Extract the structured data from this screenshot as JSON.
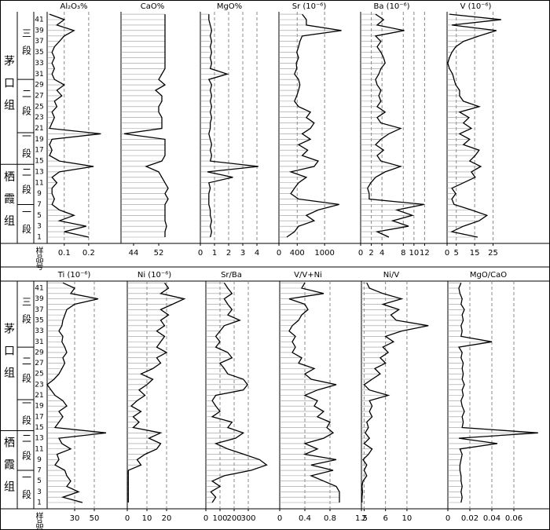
{
  "strata": [
    {
      "formation": "茅口组",
      "members": [
        "三段",
        "二段",
        "一段"
      ]
    },
    {
      "formation": "栖霞组",
      "members": [
        "二段",
        "一段"
      ]
    }
  ],
  "chart_data": [
    {
      "type": "line",
      "title": "Al₂O₃%",
      "y_label": "样品号",
      "categories": [
        1,
        null,
        3,
        null,
        5,
        null,
        7,
        null,
        9,
        null,
        11,
        null,
        13,
        null,
        15,
        null,
        17,
        null,
        19,
        null,
        21,
        null,
        23,
        null,
        25,
        null,
        27,
        null,
        29,
        null,
        31,
        null,
        33,
        null,
        35,
        null,
        37,
        null,
        39,
        null,
        41,
        null
      ],
      "values": [
        0.2,
        0.1,
        0.19,
        0.08,
        0.14,
        0.08,
        0.05,
        0.06,
        0.05,
        0.05,
        0.07,
        0.05,
        0.08,
        0.22,
        0.08,
        0.04,
        0.05,
        0.04,
        0.05,
        0.25,
        0.04,
        0.05,
        0.06,
        0.05,
        0.07,
        0.06,
        0.09,
        0.07,
        0.1,
        0.06,
        0.05,
        0.06,
        0.05,
        0.06,
        0.05,
        0.06,
        0.08,
        0.1,
        0.14,
        0.07,
        0.1,
        0.04
      ],
      "xlim": [
        0.03,
        0.3
      ],
      "xticks": [
        0.1,
        0.2
      ],
      "grid": true,
      "color": "#000000"
    },
    {
      "type": "line",
      "title": "CaO%",
      "values": [
        54,
        54,
        54.5,
        54,
        54,
        54,
        54,
        55,
        54,
        55,
        54,
        53,
        52,
        48,
        53,
        54,
        54,
        54,
        54,
        41,
        53,
        53,
        53,
        52,
        52,
        53,
        53,
        51,
        54,
        52,
        53,
        54,
        54,
        54,
        54,
        54,
        54,
        54,
        54,
        54,
        54,
        54
      ],
      "xlim": [
        40,
        64
      ],
      "xticks": [
        44,
        52
      ],
      "grid": false,
      "color": "#000000"
    },
    {
      "type": "line",
      "title": "MgO%",
      "values": [
        0.7,
        0.8,
        0.7,
        0.8,
        0.7,
        0.7,
        0.6,
        0.6,
        0.6,
        0.7,
        0.6,
        2.3,
        0.5,
        4.1,
        0.7,
        0.8,
        0.7,
        0.8,
        0.7,
        0.6,
        0.7,
        0.7,
        0.8,
        0.7,
        0.8,
        0.7,
        0.8,
        0.7,
        0.8,
        0.6,
        1.9,
        0.7,
        0.8,
        0.7,
        0.8,
        0.7,
        0.8,
        0.7,
        0.8,
        0.7,
        0.6,
        0.6
      ],
      "xlim": [
        0,
        5
      ],
      "xticks": [
        0,
        1,
        2,
        3,
        4
      ],
      "grid": true,
      "color": "#000000"
    },
    {
      "type": "line",
      "title": "Sr (10⁻⁶)",
      "values": [
        170,
        340,
        430,
        770,
        600,
        860,
        1320,
        430,
        260,
        340,
        430,
        600,
        260,
        770,
        860,
        510,
        630,
        430,
        690,
        510,
        690,
        770,
        600,
        690,
        430,
        340,
        390,
        430,
        460,
        430,
        340,
        390,
        380,
        430,
        390,
        430,
        460,
        510,
        1370,
        600,
        600,
        510
      ],
      "xlim": [
        0,
        1600
      ],
      "xticks": [
        0,
        400,
        1000
      ],
      "grid": true,
      "color": "#000000"
    },
    {
      "type": "line",
      "title": "Ba (10⁻⁶)",
      "values": [
        5.3,
        3.1,
        9.0,
        6.0,
        9.7,
        6.8,
        11.9,
        1.6,
        1.6,
        1.3,
        1.9,
        2.8,
        4.6,
        7.5,
        3.8,
        3.1,
        4.3,
        2.8,
        3.8,
        5.3,
        7.5,
        3.8,
        3.1,
        4.6,
        3.1,
        3.8,
        3.4,
        3.8,
        3.1,
        2.8,
        3.4,
        3.8,
        4.6,
        4.3,
        3.8,
        3.1,
        3.8,
        2.8,
        8.2,
        3.1,
        4.3,
        2.8
      ],
      "xlim": [
        0,
        14
      ],
      "xticks": [
        0,
        2,
        4,
        8,
        10,
        12
      ],
      "grid": true,
      "color": "#000000"
    },
    {
      "type": "line",
      "title": "V (10⁻⁶)",
      "values": [
        16.6,
        2.6,
        8.9,
        17.4,
        21.7,
        13.2,
        3.8,
        2.6,
        4.7,
        2.6,
        8.9,
        15.3,
        13.2,
        18.3,
        12.3,
        15.3,
        17.4,
        8.9,
        12.3,
        6.8,
        13.2,
        8.9,
        11.9,
        6.8,
        17.4,
        8.9,
        6.8,
        6.8,
        4.7,
        3.8,
        3.0,
        1.3,
        0.4,
        1.3,
        2.6,
        4.7,
        8.9,
        17.4,
        26.8,
        2.6,
        29.4,
        1.3
      ],
      "xlim": [
        0,
        38
      ],
      "xticks": [
        0,
        5,
        15,
        25
      ],
      "grid": true,
      "color": "#000000"
    },
    {
      "type": "line",
      "title": "Ti (10⁻⁶)",
      "y_label": "样品号",
      "categories": [
        1,
        null,
        3,
        null,
        5,
        null,
        7,
        null,
        9,
        null,
        11,
        null,
        13,
        null,
        15,
        null,
        17,
        null,
        19,
        null,
        21,
        null,
        23,
        null,
        25,
        null,
        27,
        null,
        29,
        null,
        31,
        null,
        33,
        null,
        35,
        null,
        37,
        null,
        39,
        null,
        41,
        null
      ],
      "values": [
        38,
        18,
        34,
        22,
        26,
        22,
        20,
        10,
        14,
        12,
        26,
        17,
        14,
        62,
        10,
        14,
        18,
        14,
        22,
        18,
        10,
        6,
        2,
        9,
        14,
        17,
        20,
        18,
        22,
        20,
        17,
        18,
        14,
        17,
        18,
        20,
        22,
        30,
        54,
        26,
        30,
        18
      ],
      "xlim": [
        2,
        70
      ],
      "xticks": [
        30,
        50
      ],
      "grid": true,
      "color": "#000000"
    },
    {
      "type": "line",
      "title": "Ni (10⁻⁶)",
      "values": [
        0.5,
        0.5,
        0.5,
        0.5,
        0.5,
        0.5,
        0.5,
        7,
        5,
        9,
        15,
        17,
        11,
        17,
        3,
        6,
        3,
        7,
        2,
        5,
        9,
        6,
        10,
        13,
        7,
        13,
        17,
        15,
        20,
        15,
        17,
        19,
        15,
        19,
        17,
        21,
        17,
        23,
        29,
        17,
        21,
        19
      ],
      "xlim": [
        0,
        34
      ],
      "xticks": [
        0,
        10,
        20
      ],
      "grid": true,
      "color": "#000000"
    },
    {
      "type": "line",
      "title": "Sr/Ba",
      "values": [
        45,
        70,
        35,
        100,
        45,
        130,
        320,
        430,
        380,
        270,
        155,
        70,
        210,
        265,
        155,
        185,
        45,
        100,
        70,
        45,
        70,
        265,
        295,
        265,
        155,
        130,
        100,
        185,
        155,
        70,
        100,
        70,
        100,
        130,
        240,
        155,
        185,
        155,
        130,
        185,
        155,
        130
      ],
      "xlim": [
        0,
        450
      ],
      "xticks": [
        0,
        100,
        200,
        300
      ],
      "grid": true,
      "color": "#000000"
    },
    {
      "type": "line",
      "title": "V/V+Ni",
      "values": [
        0.95,
        0.95,
        0.95,
        0.9,
        0.7,
        0.5,
        0.85,
        0.5,
        0.9,
        0.4,
        0.6,
        0.4,
        0.7,
        0.85,
        0.75,
        0.8,
        0.6,
        0.7,
        0.55,
        0.6,
        0.4,
        0.6,
        0.9,
        0.5,
        0.4,
        0.55,
        0.3,
        0.35,
        0.2,
        0.25,
        0.2,
        0.25,
        0.15,
        0.2,
        0.3,
        0.35,
        0.45,
        0.4,
        0.15,
        0.7,
        0.35,
        0.4
      ],
      "xlim": [
        0,
        1.1
      ],
      "xticks": [
        0,
        0.4,
        0.8
      ],
      "grid": true,
      "color": "#000000"
    },
    {
      "type": "line",
      "title": "Ni/V",
      "values": [
        1.6,
        1.6,
        1.7,
        1.6,
        1.8,
        2.5,
        2.0,
        2.5,
        1.8,
        2.8,
        3.5,
        2.0,
        3.0,
        2.2,
        2.8,
        2.5,
        3.5,
        3.0,
        3.5,
        3.0,
        6.5,
        3.0,
        2.0,
        3.5,
        5.0,
        4.0,
        6.0,
        5.0,
        6.5,
        5.5,
        7.5,
        6.0,
        9.0,
        14.0,
        8.0,
        7.0,
        8.5,
        5.5,
        9.0,
        5.5,
        3.0,
        2.5
      ],
      "xlim": [
        1.5,
        15
      ],
      "xticks": [
        1.5,
        2,
        6,
        10
      ],
      "grid": true,
      "color": "#000000"
    },
    {
      "type": "line",
      "title": "MgO/CaO",
      "values": [
        0.012,
        0.013,
        0.012,
        0.013,
        0.012,
        0.012,
        0.011,
        0.011,
        0.012,
        0.013,
        0.011,
        0.045,
        0.01,
        0.082,
        0.013,
        0.014,
        0.013,
        0.015,
        0.013,
        0.012,
        0.014,
        0.013,
        0.015,
        0.013,
        0.014,
        0.013,
        0.014,
        0.012,
        0.013,
        0.01,
        0.04,
        0.012,
        0.013,
        0.012,
        0.014,
        0.013,
        0.015,
        0.012,
        0.013,
        0.011,
        0.01,
        0.012
      ],
      "xlim": [
        0,
        0.085
      ],
      "xticks": [
        0,
        0.02,
        0.04,
        0.06
      ],
      "grid": true,
      "color": "#000000"
    }
  ]
}
